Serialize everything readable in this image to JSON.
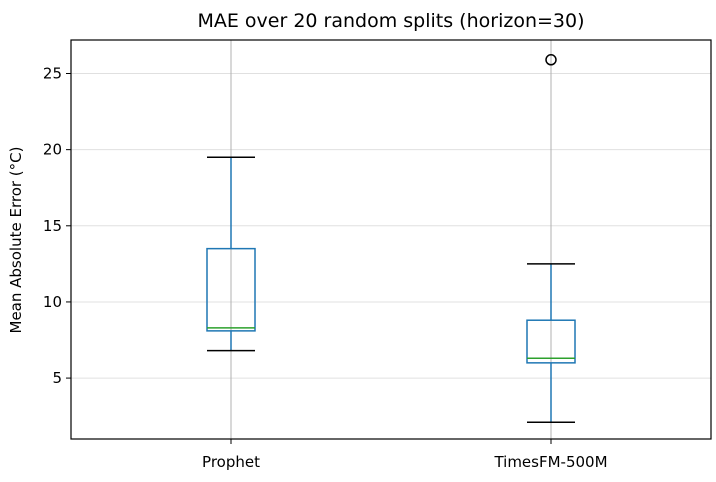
{
  "chart_data": {
    "type": "box",
    "title": "MAE over 20 random splits (horizon=30)",
    "xlabel": "",
    "ylabel": "Mean Absolute Error (°C)",
    "ylim": [
      1.0,
      27.2
    ],
    "yticks": [
      5,
      10,
      15,
      20,
      25
    ],
    "grid": true,
    "categories": [
      "Prophet",
      "TimesFM-500M"
    ],
    "boxes": [
      {
        "category": "Prophet",
        "whisker_low": 6.8,
        "q1": 8.1,
        "median": 8.3,
        "q3": 13.5,
        "whisker_high": 19.5,
        "outliers": []
      },
      {
        "category": "TimesFM-500M",
        "whisker_low": 2.1,
        "q1": 6.0,
        "median": 6.3,
        "q3": 8.8,
        "whisker_high": 12.5,
        "outliers": [
          25.9
        ]
      }
    ],
    "colors": {
      "box": "#1f77b4",
      "median": "#2ca02c",
      "whisker_cap": "#000000",
      "grid": "#e0e0e0",
      "flier": "#000000"
    }
  }
}
